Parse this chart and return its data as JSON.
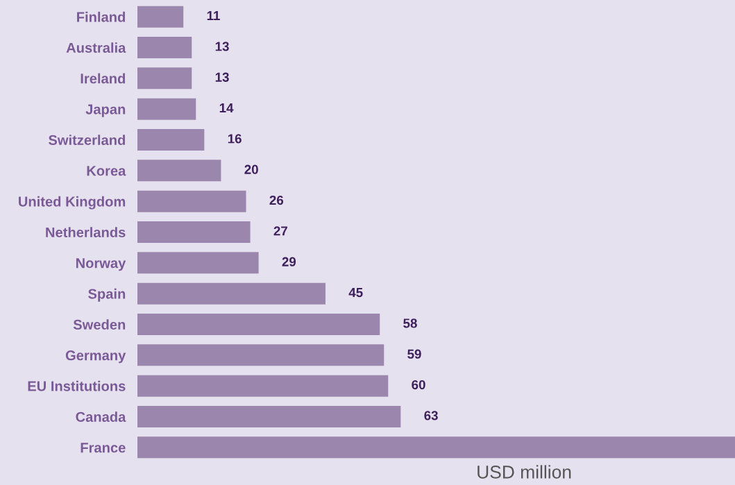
{
  "chart_data": {
    "type": "bar",
    "orientation": "horizontal",
    "categories": [
      "Finland",
      "Australia",
      "Ireland",
      "Japan",
      "Switzerland",
      "Korea",
      "United Kingdom",
      "Netherlands",
      "Norway",
      "Spain",
      "Sweden",
      "Germany",
      "EU Institutions",
      "Canada",
      "France"
    ],
    "values": [
      11,
      13,
      13,
      14,
      16,
      20,
      26,
      27,
      29,
      45,
      58,
      59,
      60,
      63,
      143
    ],
    "value_labels": [
      "11",
      "13",
      "13",
      "14",
      "16",
      "20",
      "26",
      "27",
      "29",
      "45",
      "58",
      "59",
      "60",
      "63",
      null
    ],
    "color": "#9b86ad",
    "xlabel": "USD million",
    "grid": false,
    "legend": false
  }
}
